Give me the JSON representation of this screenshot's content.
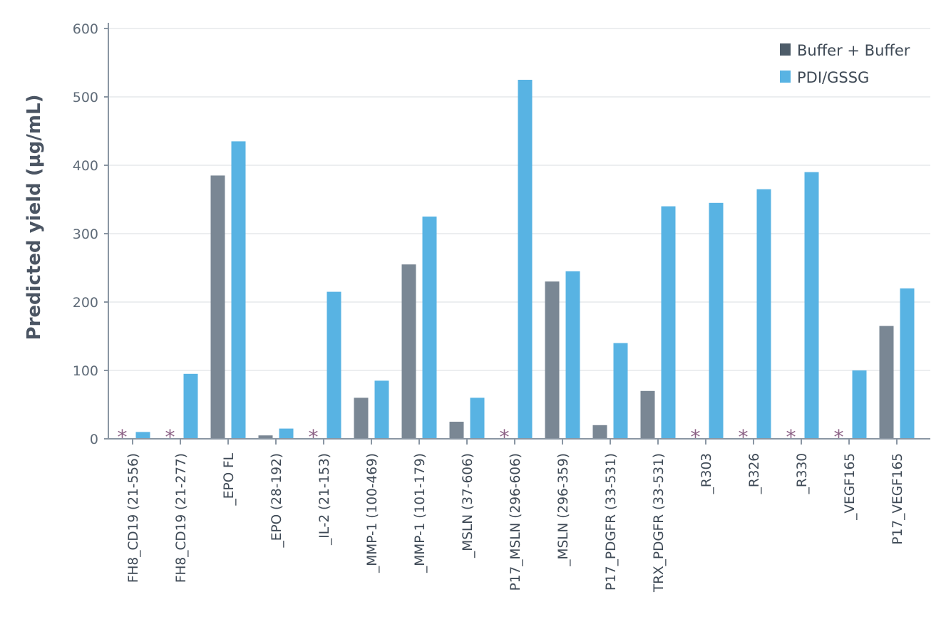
{
  "chart_data": {
    "type": "bar",
    "title": "",
    "xlabel": "",
    "ylabel": "Predicted yield (µg/mL)",
    "ylim": [
      0,
      600
    ],
    "yticks": [
      0,
      100,
      200,
      300,
      400,
      500,
      600
    ],
    "grid": true,
    "legend_position": "top-right",
    "categories": [
      "FH8_CD19 (21-556)",
      "FH8_CD19 (21-277)",
      "_EPO FL",
      "_EPO (28-192)",
      "_IL-2 (21-153)",
      "_MMP-1 (100-469)",
      "_MMP-1 (101-179)",
      "_MSLN (37-606)",
      "P17_MSLN (296-606)",
      "_MSLN (296-359)",
      "P17_PDGFR (33-531)",
      "TRX_PDGFR (33-531)",
      "_R303",
      "_R326",
      "_R330",
      "_VEGF165",
      "P17_VEGF165"
    ],
    "series": [
      {
        "name": "Buffer + Buffer",
        "color": "#7a8794",
        "legend_color": "#4d5c69",
        "values": [
          null,
          null,
          385,
          5,
          null,
          60,
          255,
          25,
          null,
          230,
          20,
          70,
          null,
          null,
          null,
          null,
          165
        ]
      },
      {
        "name": "PDI/GSSG",
        "color": "#58b3e3",
        "legend_color": "#58b3e3",
        "values": [
          10,
          95,
          435,
          15,
          215,
          85,
          325,
          60,
          525,
          245,
          140,
          340,
          345,
          365,
          390,
          100,
          220
        ]
      }
    ],
    "annotations": {
      "marker": "*",
      "meaning_shown": false,
      "marked_categories": [
        0,
        1,
        4,
        8,
        12,
        13,
        14,
        15
      ]
    }
  },
  "colors": {
    "grid": "#d9dde1",
    "axis": "#8a96a3",
    "marker": "#8c6286"
  }
}
